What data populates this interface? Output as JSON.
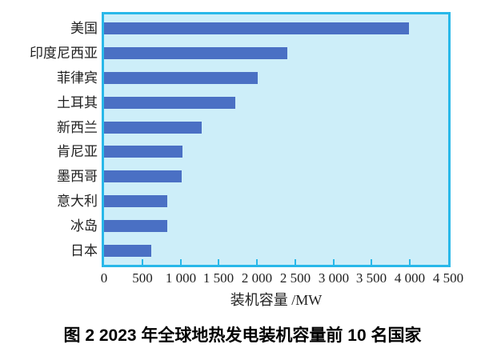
{
  "chart_data": {
    "type": "bar",
    "orientation": "horizontal",
    "title": "图 2  2023 年全球地热发电装机容量前 10 名国家",
    "xlabel": "装机容量 /MW",
    "categories": [
      "美国",
      "印度尼西亚",
      "菲律宾",
      "土耳其",
      "新西兰",
      "肯尼亚",
      "墨西哥",
      "意大利",
      "冰岛",
      "日本"
    ],
    "values": [
      3990,
      2400,
      2010,
      1720,
      1280,
      1030,
      1010,
      830,
      830,
      620
    ],
    "xlim": [
      0,
      4500
    ],
    "xticks": [
      0,
      500,
      1000,
      1500,
      2000,
      2500,
      3000,
      3500,
      4000,
      4500
    ],
    "xtick_labels": [
      "0",
      "500",
      "1 000",
      "1 500",
      "2 000",
      "2 500",
      "3 000",
      "3 500",
      "4 000",
      "4 500"
    ],
    "grid": false,
    "legend": false,
    "colors": {
      "bar": "#4a70c4",
      "plot_background": "#cdeef9",
      "plot_border": "#29b8e9",
      "text": "#1f1f1f"
    }
  }
}
